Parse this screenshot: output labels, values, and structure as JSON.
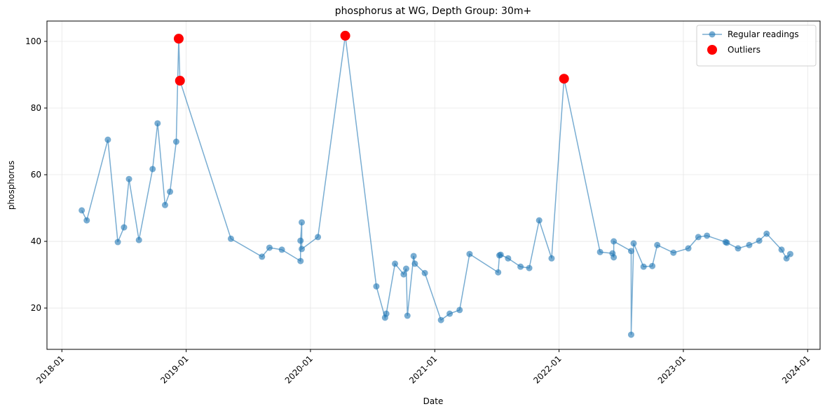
{
  "chart_data": {
    "type": "line",
    "title": "phosphorus at WG, Depth Group: 30m+",
    "xlabel": "Date",
    "ylabel": "phosphorus",
    "grid": true,
    "legend": "upper right",
    "xlim": [
      2017.88,
      2024.1
    ],
    "ylim": [
      7.6,
      106.1
    ],
    "xticks": [
      {
        "value": 2018.0,
        "label": "2018-01"
      },
      {
        "value": 2019.0,
        "label": "2019-01"
      },
      {
        "value": 2020.0,
        "label": "2020-01"
      },
      {
        "value": 2021.0,
        "label": "2021-01"
      },
      {
        "value": 2022.0,
        "label": "2022-01"
      },
      {
        "value": 2023.0,
        "label": "2023-01"
      },
      {
        "value": 2024.0,
        "label": "2024-01"
      }
    ],
    "yticks": [
      20,
      40,
      60,
      80,
      100
    ],
    "series": [
      {
        "name": "Regular readings",
        "color": "#1f77b4",
        "style": "line",
        "x": [
          2018.16,
          2018.2,
          2018.37,
          2018.45,
          2018.5,
          2018.54,
          2018.62,
          2018.73,
          2018.77,
          2018.83,
          2018.87,
          2018.92,
          2018.94,
          2018.95,
          2019.36,
          2019.61,
          2019.67,
          2019.77,
          2019.92,
          2019.92,
          2019.93,
          2019.93,
          2020.06,
          2020.28,
          2020.53,
          2020.6,
          2020.61,
          2020.68,
          2020.75,
          2020.77,
          2020.78,
          2020.83,
          2020.84,
          2020.92,
          2021.05,
          2021.12,
          2021.2,
          2021.28,
          2021.51,
          2021.52,
          2021.53,
          2021.59,
          2021.69,
          2021.76,
          2021.84,
          2021.94,
          2022.04,
          2022.33,
          2022.43,
          2022.44,
          2022.44,
          2022.58,
          2022.58,
          2022.6,
          2022.68,
          2022.75,
          2022.79,
          2022.92,
          2023.04,
          2023.12,
          2023.19,
          2023.34,
          2023.35,
          2023.44,
          2023.53,
          2023.61,
          2023.67,
          2023.79,
          2023.83,
          2023.86
        ],
        "values": [
          49.3,
          46.3,
          70.5,
          39.8,
          44.2,
          58.7,
          40.4,
          61.7,
          75.4,
          50.9,
          54.9,
          69.9,
          100.8,
          88.2,
          40.8,
          35.4,
          38.1,
          37.5,
          34.1,
          40.2,
          45.7,
          37.7,
          41.3,
          101.7,
          26.5,
          17.1,
          18.3,
          33.3,
          30.1,
          31.8,
          17.7,
          35.6,
          33.3,
          30.5,
          16.4,
          18.3,
          19.4,
          36.2,
          30.7,
          35.8,
          36.0,
          34.9,
          32.4,
          32.0,
          46.3,
          34.9,
          88.8,
          36.8,
          36.4,
          35.2,
          40.0,
          37.1,
          12.0,
          39.4,
          32.4,
          32.6,
          38.9,
          36.6,
          37.9,
          41.3,
          41.7,
          39.8,
          39.6,
          37.9,
          38.9,
          40.2,
          42.3,
          37.5,
          34.9,
          36.2
        ]
      },
      {
        "name": "Outliers",
        "color": "#ff0000",
        "style": "marker",
        "x": [
          2018.94,
          2018.95,
          2020.28,
          2022.04
        ],
        "values": [
          100.8,
          88.2,
          101.7,
          88.8
        ]
      }
    ]
  }
}
